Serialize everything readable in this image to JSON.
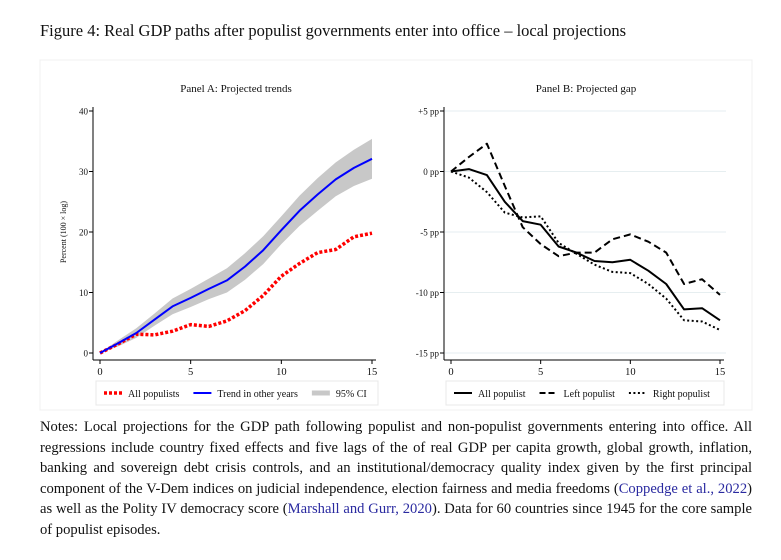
{
  "title": "Figure 4:   Real GDP paths after populist governments enter into office – local projections",
  "notes": [
    {
      "text": "Notes: Local projections for the GDP path following populist and non-populist governments entering into office. All regressions include country fixed effects and five lags of the of real GDP per capita growth, global growth, inflation, banking and sovereign debt crisis controls, and an institutional/democracy quality index given by the first principal component of the V-Dem indices on judicial independence, election fairness and media freedoms (",
      "link": false
    },
    {
      "text": "Coppedge et al., 2022",
      "link": true
    },
    {
      "text": ") as well as the Polity IV democracy score (",
      "link": false
    },
    {
      "text": "Marshall and Gurr, 2020",
      "link": true
    },
    {
      "text": "). Data for 60 countries since 1945 for the core sample of populist episodes.",
      "link": false
    }
  ],
  "colors": {
    "red": "#ff0000",
    "blue": "#0000ff",
    "ci": "#c8c8c8",
    "black": "#000000",
    "link": "#2a2aa0"
  },
  "chart_data": [
    {
      "type": "line",
      "title": "Panel A: Projected trends",
      "ylabel": "Percent (100 × log)",
      "xlabel": "",
      "xlim": [
        0,
        15
      ],
      "ylim": [
        0,
        40
      ],
      "xticks": [
        "0",
        "5",
        "10",
        "15"
      ],
      "yticks": [
        "0",
        "10",
        "20",
        "30",
        "40"
      ],
      "grid": false,
      "legend": "bottom",
      "x": [
        0,
        1,
        2,
        3,
        4,
        5,
        6,
        7,
        8,
        9,
        10,
        11,
        12,
        13,
        14,
        15
      ],
      "series": [
        {
          "name": "All populists",
          "style": "dotted",
          "color": "#ff0000",
          "values": [
            0,
            1.5,
            3.1,
            3.0,
            3.6,
            4.7,
            4.4,
            5.3,
            7.0,
            9.5,
            12.7,
            14.8,
            16.6,
            17.1,
            19.2,
            19.8
          ]
        },
        {
          "name": "Trend in other years",
          "style": "solid",
          "color": "#0000ff",
          "values": [
            0,
            1.6,
            3.3,
            5.5,
            7.7,
            9.1,
            10.6,
            12.0,
            14.3,
            17.0,
            20.3,
            23.5,
            26.2,
            28.7,
            30.6,
            32.1
          ],
          "ci_lower": [
            0,
            1.1,
            2.5,
            4.5,
            6.4,
            7.6,
            8.9,
            10.0,
            12.1,
            14.7,
            18.0,
            21.0,
            23.5,
            25.9,
            27.6,
            28.8
          ],
          "ci_upper": [
            0,
            2.1,
            4.1,
            6.5,
            9.0,
            10.6,
            12.3,
            14.0,
            16.5,
            19.3,
            22.6,
            26.0,
            28.9,
            31.5,
            33.6,
            35.4
          ]
        },
        {
          "name": "95% CI",
          "style": "band",
          "color": "#c8c8c8"
        }
      ]
    },
    {
      "type": "line",
      "title": "Panel B: Projected gap",
      "xlabel": "",
      "ylabel": "",
      "xlim": [
        0,
        15
      ],
      "ylim": [
        -15,
        5
      ],
      "xticks": [
        "0",
        "5",
        "10",
        "15"
      ],
      "yticks": [
        "+5 pp",
        "0 pp",
        "-5 pp",
        "-10 pp",
        "-15 pp"
      ],
      "ytick_values": [
        5,
        0,
        -5,
        -10,
        -15
      ],
      "grid": true,
      "legend": "bottom",
      "x": [
        0,
        1,
        2,
        3,
        4,
        5,
        6,
        7,
        8,
        9,
        10,
        11,
        12,
        13,
        14,
        15
      ],
      "series": [
        {
          "name": "All populist",
          "style": "solid",
          "color": "#000000",
          "values": [
            0,
            0.2,
            -0.3,
            -2.5,
            -4.1,
            -4.4,
            -6.2,
            -6.7,
            -7.4,
            -7.5,
            -7.3,
            -8.2,
            -9.3,
            -11.4,
            -11.3,
            -12.3
          ]
        },
        {
          "name": "Left populist",
          "style": "dashed",
          "color": "#000000",
          "values": [
            0,
            1.2,
            2.3,
            -1.2,
            -4.6,
            -6.0,
            -7.0,
            -6.7,
            -6.7,
            -5.6,
            -5.2,
            -5.8,
            -6.7,
            -9.3,
            -8.9,
            -10.2
          ]
        },
        {
          "name": "Right populist",
          "style": "dotted",
          "color": "#000000",
          "values": [
            0,
            -0.5,
            -1.7,
            -3.4,
            -3.8,
            -3.7,
            -5.9,
            -6.8,
            -7.7,
            -8.3,
            -8.4,
            -9.3,
            -10.5,
            -12.3,
            -12.4,
            -13.1
          ]
        }
      ]
    }
  ]
}
